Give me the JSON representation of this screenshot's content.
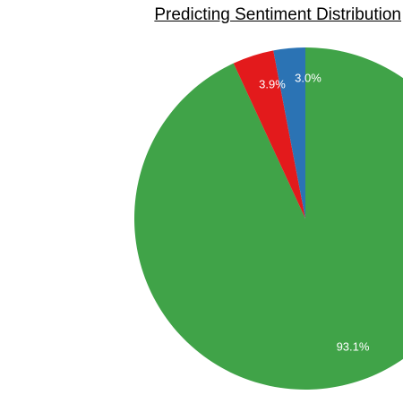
{
  "chart_data": {
    "type": "pie",
    "title": "Predicting Sentiment Distribution",
    "slices": [
      {
        "value": 93.1,
        "label": "93.1%",
        "color": "#40a348"
      },
      {
        "value": 3.9,
        "label": "3.9%",
        "color": "#e31a1c"
      },
      {
        "value": 3.0,
        "label": "3.0%",
        "color": "#2b73b4"
      }
    ],
    "start": "12 o'clock",
    "direction": "clockwise"
  }
}
